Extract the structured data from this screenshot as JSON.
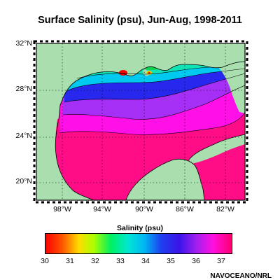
{
  "title": "Surface Salinity (psu),  Jun-Aug, 1998-2011",
  "lat_labels": [
    "32°N",
    "28°N",
    "24°N",
    "20°N"
  ],
  "lon_labels": [
    "98°W",
    "94°W",
    "90°W",
    "86°W",
    "82°W"
  ],
  "colorbar": {
    "title": "Salinity (psu)",
    "ticks": [
      "30",
      "31",
      "32",
      "33",
      "34",
      "35",
      "36",
      "37"
    ],
    "min": 30,
    "max": 37.4
  },
  "credit": "NAVOCEANO/NRL",
  "colors": {
    "land": "#a9dfae",
    "s37": "#ff0d86",
    "s36": "#ff10e6",
    "s35": "#a52ff4",
    "s34": "#2727ee",
    "s33": "#00c9f0",
    "s32": "#0fe3b6",
    "s31": "#10d04f"
  }
}
